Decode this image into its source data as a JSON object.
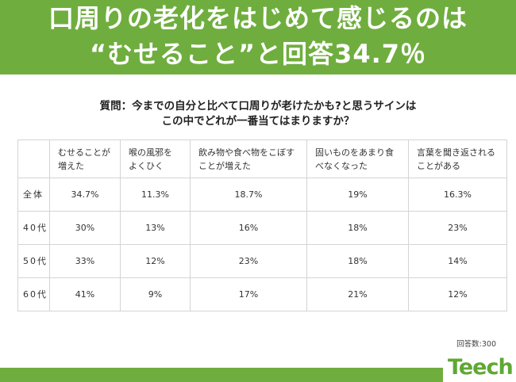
{
  "banner": {
    "line1": "口周りの老化をはじめて感じるのは",
    "line2": "“むせること”と回答34.7％",
    "color": "#6fae3e"
  },
  "question": {
    "line1": "質問：今までの自分と比べて口周りが老けたかも?と思うサインは",
    "line2": "この中でどれが一番当てはまりますか？"
  },
  "chart_data": {
    "type": "table",
    "columns": [
      "むせることが増えた",
      "喉の風邪をよくひく",
      "飲み物や食べ物をこぼすことが増えた",
      "固いものをあまり食べなくなった",
      "言葉を聞き返されることがある"
    ],
    "rows": [
      {
        "label": "全体",
        "values": [
          "34.7%",
          "11.3%",
          "18.7%",
          "19%",
          "16.3%"
        ]
      },
      {
        "label": "40代",
        "values": [
          "30%",
          "13%",
          "16%",
          "18%",
          "23%"
        ]
      },
      {
        "label": "50代",
        "values": [
          "33%",
          "12%",
          "23%",
          "18%",
          "14%"
        ]
      },
      {
        "label": "60代",
        "values": [
          "41%",
          "9%",
          "17%",
          "21%",
          "12%"
        ]
      }
    ]
  },
  "respondents": "回答数:300",
  "logo": "Teech"
}
